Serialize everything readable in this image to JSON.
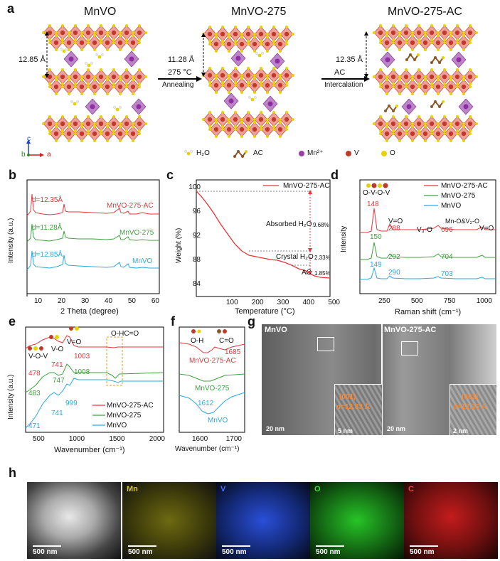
{
  "panel_labels": {
    "a": "a",
    "b": "b",
    "c": "c",
    "d": "d",
    "e": "e",
    "f": "f",
    "g": "g",
    "h": "h"
  },
  "panel_a": {
    "titles": [
      "MnVO",
      "MnVO-275",
      "MnVO-275-AC"
    ],
    "spacing_1": "12.85 Å",
    "spacing_2": "11.28 Å",
    "spacing_3": "12.35 Å",
    "arrow1_top": "275 °C",
    "arrow1_bottom": "Annealing",
    "arrow2_top": "AC",
    "arrow2_bottom": "Intercalation",
    "legend": [
      "H₂O",
      "AC",
      "Mn²⁺",
      "V",
      "O"
    ],
    "axes": [
      "c",
      "b",
      "a"
    ],
    "colors": {
      "octahedron": "#e98074",
      "v": "#c0392b",
      "o": "#e6d200",
      "mn": "#9b3fa8",
      "h": "#f0f0f0",
      "c": "#8b5a2b"
    }
  },
  "panel_b": {
    "ylabel": "Intensity (a.u.)",
    "xlabel": "2 Theta (degree)",
    "xticks": [
      "10",
      "20",
      "30",
      "40",
      "50",
      "60"
    ],
    "series": [
      {
        "name": "MnVO-275-AC",
        "label": "d=12.35Å",
        "color": "#e8343a"
      },
      {
        "name": "MnVO-275",
        "label": "d=11.28Å",
        "color": "#3da33d"
      },
      {
        "name": "MnVO",
        "label": "d=12.85Å",
        "color": "#2aa8df"
      }
    ]
  },
  "panel_c": {
    "legend": "MnVO-275-AC",
    "ylabel": "Weight (%)",
    "xlabel": "Temperature (°C)",
    "yticks": [
      "100",
      "96",
      "92",
      "88",
      "84"
    ],
    "xticks": [
      "100",
      "200",
      "300",
      "400",
      "500"
    ],
    "ann_absorbed": "Absorbed H₂O",
    "ann_absorbed_pct": "9.68%",
    "ann_crystal": "Crystal H₂O",
    "ann_crystal_pct": "2.33%",
    "ann_ac": "AC",
    "ann_ac_pct": "1.85%"
  },
  "panel_d": {
    "ylabel": "Intensity",
    "xlabel": "Raman shift (cm⁻¹)",
    "xticks": [
      "250",
      "500",
      "750",
      "1000"
    ],
    "legend": [
      "MnVO-275-AC",
      "MnVO-275",
      "MnVO"
    ],
    "labels": {
      "ovov": "O-V-O-V",
      "vo1": "V=O",
      "v3o": "V₃-O",
      "mno": "Mn-O&V₂-O",
      "vo2": "V=O"
    },
    "peaks_ac": [
      "148",
      "288",
      "696"
    ],
    "peaks_275": [
      "150",
      "292",
      "704"
    ],
    "peaks_mnvo": [
      "149",
      "290",
      "703"
    ]
  },
  "panel_e": {
    "ylabel": "Intensity (a.u.)",
    "xlabel": "Wavenumber (cm⁻¹)",
    "xticks": [
      "500",
      "1000",
      "1500",
      "2000"
    ],
    "legend": [
      "MnVO-275-AC",
      "MnVO-275",
      "MnVO"
    ],
    "labels": {
      "ovov": "V-O-V",
      "vo": "V-O",
      "vdo": "V=O",
      "ohc": "O-HC=O"
    },
    "peaks_ac": [
      "478",
      "741",
      "1003"
    ],
    "peaks_275": [
      "483",
      "747",
      "1008"
    ],
    "peaks_mnvo": [
      "471",
      "741",
      "999"
    ]
  },
  "panel_f": {
    "xlabel": "Wavenumber (cm⁻¹)",
    "xticks": [
      "1600",
      "1700"
    ],
    "labels": {
      "oh": "O-H",
      "co": "C=O"
    },
    "peak_ac": "1685",
    "peak_mnvo": "1612",
    "names": [
      "MnVO-275-AC",
      "MnVO-275",
      "MnVO"
    ]
  },
  "panel_g": {
    "left_title": "MnVO",
    "right_title": "MnVO-275-AC",
    "left_plane": "(001)",
    "left_d": "d=12.83 Å",
    "right_plane": "(001)",
    "right_d": "d=12.35 Å",
    "scale_20_left": "20 nm",
    "scale_5": "5 nm",
    "scale_20_right": "20 nm",
    "scale_2": "2 nm"
  },
  "panel_h": {
    "maps": [
      "Mn",
      "V",
      "O",
      "C"
    ],
    "map_colors": [
      "#d6c82a",
      "#2a4fd8",
      "#27c427",
      "#e02424"
    ],
    "scales": [
      "500 nm",
      "500 nm",
      "500 nm",
      "500 nm",
      "500 nm"
    ]
  }
}
